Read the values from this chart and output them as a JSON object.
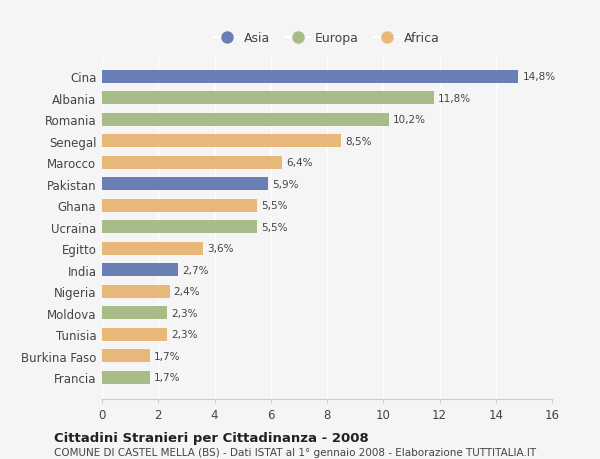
{
  "countries": [
    "Cina",
    "Albania",
    "Romania",
    "Senegal",
    "Marocco",
    "Pakistan",
    "Ghana",
    "Ucraina",
    "Egitto",
    "India",
    "Nigeria",
    "Moldova",
    "Tunisia",
    "Burkina Faso",
    "Francia"
  ],
  "values": [
    14.8,
    11.8,
    10.2,
    8.5,
    6.4,
    5.9,
    5.5,
    5.5,
    3.6,
    2.7,
    2.4,
    2.3,
    2.3,
    1.7,
    1.7
  ],
  "labels": [
    "14,8%",
    "11,8%",
    "10,2%",
    "8,5%",
    "6,4%",
    "5,9%",
    "5,5%",
    "5,5%",
    "3,6%",
    "2,7%",
    "2,4%",
    "2,3%",
    "2,3%",
    "1,7%",
    "1,7%"
  ],
  "continents": [
    "Asia",
    "Europa",
    "Europa",
    "Africa",
    "Africa",
    "Asia",
    "Africa",
    "Europa",
    "Africa",
    "Asia",
    "Africa",
    "Europa",
    "Africa",
    "Africa",
    "Europa"
  ],
  "colors": {
    "Asia": "#6a7fb5",
    "Europa": "#a8bc8a",
    "Africa": "#e8b87a"
  },
  "legend_order": [
    "Asia",
    "Europa",
    "Africa"
  ],
  "xlim": [
    0,
    16
  ],
  "xticks": [
    0,
    2,
    4,
    6,
    8,
    10,
    12,
    14,
    16
  ],
  "title": "Cittadini Stranieri per Cittadinanza - 2008",
  "subtitle": "COMUNE DI CASTEL MELLA (BS) - Dati ISTAT al 1° gennaio 2008 - Elaborazione TUTTITALIA.IT",
  "bg_color": "#f5f5f5",
  "bar_height": 0.6,
  "fig_width": 6.0,
  "fig_height": 4.6
}
